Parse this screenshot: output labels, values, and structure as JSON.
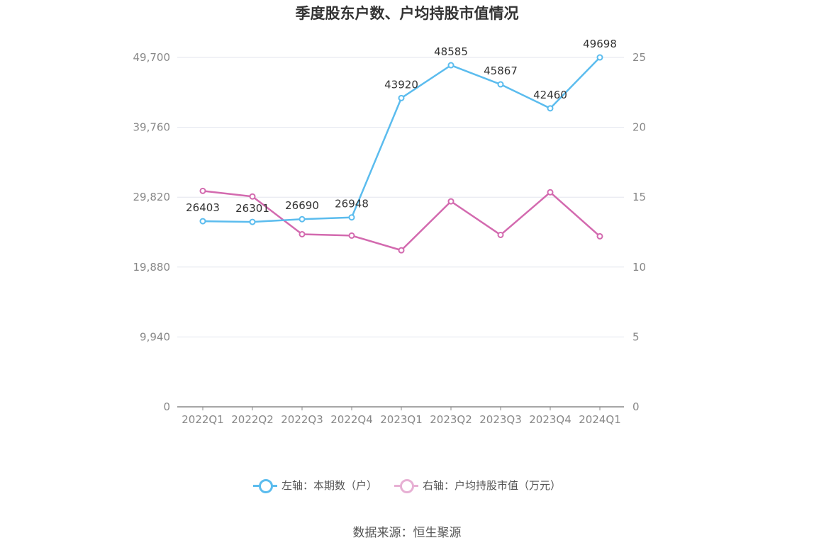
{
  "title": "季度股东户数、户均持股市值情况",
  "source": "数据来源：恒生聚源",
  "chart_data": {
    "type": "line",
    "categories": [
      "2022Q1",
      "2022Q2",
      "2022Q3",
      "2022Q4",
      "2023Q1",
      "2023Q2",
      "2023Q3",
      "2023Q4",
      "2024Q1"
    ],
    "left_axis": {
      "ticks": [
        "0",
        "9,940",
        "19,880",
        "29,820",
        "39,760",
        "49,700"
      ],
      "range": [
        0,
        49700
      ]
    },
    "right_axis": {
      "ticks": [
        "0",
        "5",
        "10",
        "15",
        "20",
        "25"
      ],
      "range": [
        0,
        25
      ]
    },
    "series": [
      {
        "name": "左轴：本期数（户）",
        "axis": "left",
        "color": "#5bbcee",
        "values": [
          26403,
          26301,
          26690,
          26948,
          43920,
          48585,
          45867,
          42460,
          49698
        ],
        "labels": [
          "26403",
          "26301",
          "26690",
          "26948",
          "43920",
          "48585",
          "45867",
          "42460",
          "49698"
        ]
      },
      {
        "name": "右轴：户均持股市值（万元）",
        "axis": "right",
        "color": "#d36aaf",
        "legend_color": "#e7b0d4",
        "values": [
          15.45,
          15.05,
          12.35,
          12.25,
          11.2,
          14.7,
          12.3,
          15.35,
          12.2
        ]
      }
    ],
    "grid": true,
    "legend": "bottom-center"
  }
}
